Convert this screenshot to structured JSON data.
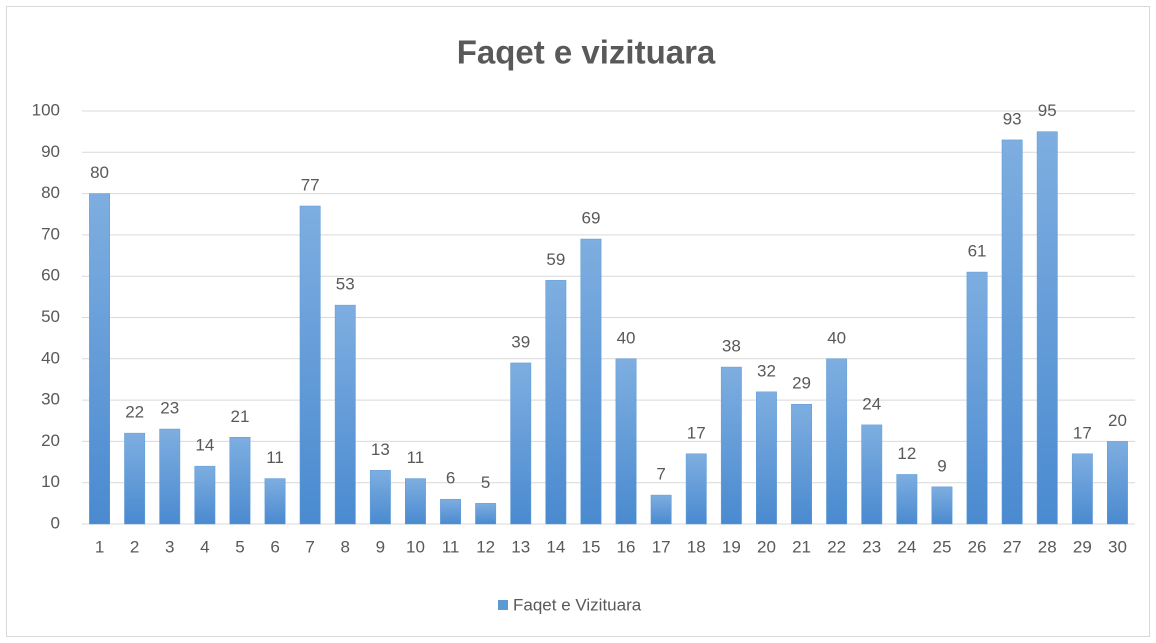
{
  "chart_data": {
    "type": "bar",
    "title": "Faqet e vizituara",
    "categories": [
      "1",
      "2",
      "3",
      "4",
      "5",
      "6",
      "7",
      "8",
      "9",
      "10",
      "11",
      "12",
      "13",
      "14",
      "15",
      "16",
      "17",
      "18",
      "19",
      "20",
      "21",
      "22",
      "23",
      "24",
      "25",
      "26",
      "27",
      "28",
      "29",
      "30"
    ],
    "series": [
      {
        "name": "Faqet e Vizituara",
        "color": "#5b9bd5",
        "values": [
          80,
          22,
          23,
          14,
          21,
          11,
          77,
          53,
          13,
          11,
          6,
          5,
          39,
          59,
          69,
          40,
          7,
          17,
          38,
          32,
          29,
          40,
          24,
          12,
          9,
          61,
          93,
          95,
          17,
          20
        ]
      }
    ],
    "ylim": [
      0,
      100
    ],
    "yticks": [
      0,
      10,
      20,
      30,
      40,
      50,
      60,
      70,
      80,
      90,
      100
    ],
    "grid": true,
    "legend": "bottom"
  }
}
